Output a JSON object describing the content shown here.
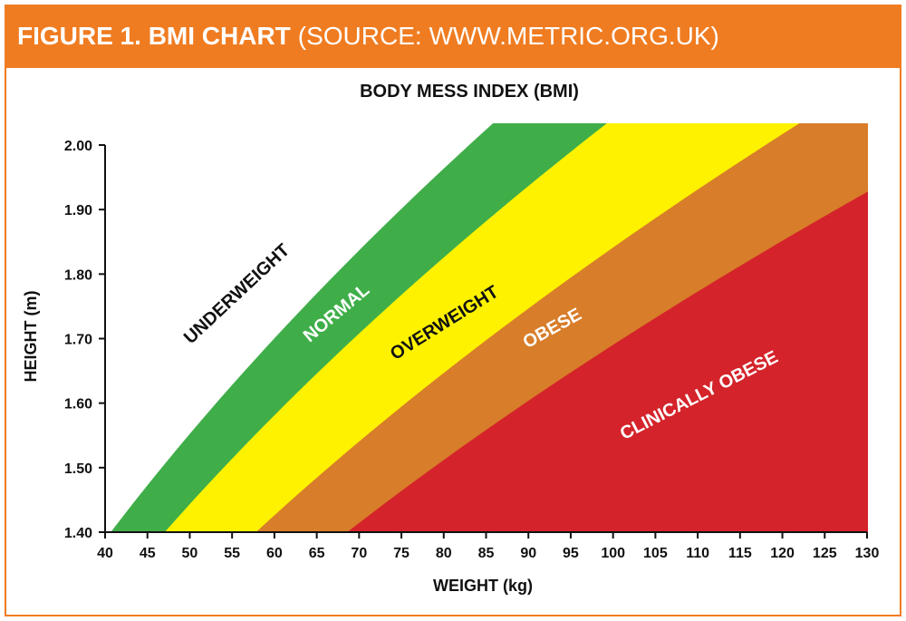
{
  "header": {
    "bold": "FIGURE 1. BMI CHART",
    "light": "(SOURCE: WWW.METRIC.ORG.UK)"
  },
  "colors": {
    "header": "#f07c21",
    "underweight": "#ffffff",
    "normal": "#3fae49",
    "overweight": "#fff200",
    "obese": "#d87d29",
    "clinically_obese": "#d4232a"
  },
  "chart_data": {
    "type": "area",
    "title": "BODY MESS INDEX (BMI)",
    "xlabel": "WEIGHT (kg)",
    "ylabel": "HEIGHT (m)",
    "xlim": [
      40,
      130
    ],
    "ylim": [
      1.4,
      2.0
    ],
    "xticks": [
      "40",
      "45",
      "50",
      "55",
      "60",
      "65",
      "70",
      "75",
      "80",
      "85",
      "90",
      "95",
      "100",
      "105",
      "110",
      "115",
      "120",
      "125",
      "130"
    ],
    "yticks": [
      "1.40",
      "1.50",
      "1.60",
      "1.70",
      "1.80",
      "1.90",
      "2.00"
    ],
    "bmi_thresholds": [
      20.75,
      24,
      29.5,
      35
    ],
    "categories": [
      {
        "label": "UNDERWEIGHT",
        "color": "#ffffff",
        "text_color": "#111111"
      },
      {
        "label": "NORMAL",
        "color": "#3fae49",
        "text_color": "#ffffff"
      },
      {
        "label": "OVERWEIGHT",
        "color": "#fff200",
        "text_color": "#111111"
      },
      {
        "label": "OBESE",
        "color": "#d87d29",
        "text_color": "#ffffff"
      },
      {
        "label": "CLINICALLY OBESE",
        "color": "#d4232a",
        "text_color": "#ffffff"
      }
    ]
  }
}
